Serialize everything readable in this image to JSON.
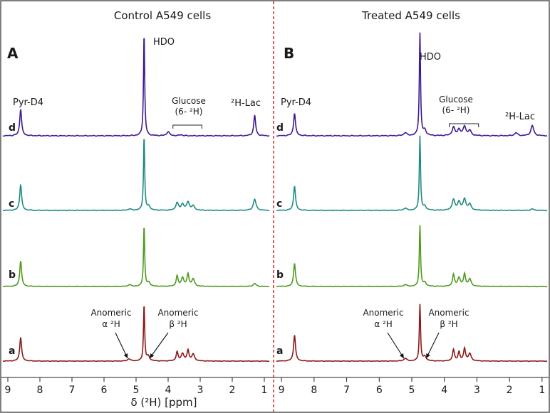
{
  "figure": {
    "xlabel": "δ (²H) [ppm]",
    "ticks": [
      "9",
      "8",
      "7",
      "6",
      "5",
      "4",
      "3",
      "2",
      "1"
    ],
    "colors": {
      "a": "#8b1a1a",
      "b": "#4e9a1f",
      "c": "#1f8a85",
      "d": "#3d1a8f",
      "divider": "#e0302a",
      "frame": "#555555"
    }
  },
  "chart_data": [
    {
      "type": "line",
      "panel_letter": "A",
      "title": "Control A549 cells",
      "xlabel": "δ (²H) [ppm]",
      "x_reversed": true,
      "xlim": [
        9.2,
        0.8
      ],
      "x_ticks": [
        9,
        8,
        7,
        6,
        5,
        4,
        3,
        2,
        1
      ],
      "series": [
        {
          "name": "a",
          "peaks": [
            {
              "ppm": 8.6,
              "h": 0.42
            },
            {
              "ppm": 5.22,
              "h": 0.04
            },
            {
              "ppm": 4.75,
              "h": 1.0
            },
            {
              "ppm": 4.62,
              "h": 0.08
            },
            {
              "ppm": 3.72,
              "h": 0.16
            },
            {
              "ppm": 3.55,
              "h": 0.13
            },
            {
              "ppm": 3.38,
              "h": 0.19
            },
            {
              "ppm": 3.22,
              "h": 0.12
            }
          ]
        },
        {
          "name": "b",
          "peaks": [
            {
              "ppm": 8.6,
              "h": 0.42
            },
            {
              "ppm": 5.2,
              "h": 0.03
            },
            {
              "ppm": 4.75,
              "h": 1.0
            },
            {
              "ppm": 4.6,
              "h": 0.06
            },
            {
              "ppm": 3.72,
              "h": 0.17
            },
            {
              "ppm": 3.55,
              "h": 0.14
            },
            {
              "ppm": 3.38,
              "h": 0.2
            },
            {
              "ppm": 3.22,
              "h": 0.12
            },
            {
              "ppm": 1.3,
              "h": 0.05
            }
          ]
        },
        {
          "name": "c",
          "peaks": [
            {
              "ppm": 8.6,
              "h": 0.35
            },
            {
              "ppm": 5.2,
              "h": 0.02
            },
            {
              "ppm": 4.75,
              "h": 1.0
            },
            {
              "ppm": 4.6,
              "h": 0.05
            },
            {
              "ppm": 3.72,
              "h": 0.1
            },
            {
              "ppm": 3.55,
              "h": 0.08
            },
            {
              "ppm": 3.38,
              "h": 0.11
            },
            {
              "ppm": 3.22,
              "h": 0.06
            },
            {
              "ppm": 1.3,
              "h": 0.15
            }
          ]
        },
        {
          "name": "d",
          "peaks": [
            {
              "ppm": 8.6,
              "h": 0.26
            },
            {
              "ppm": 4.75,
              "h": 1.0
            },
            {
              "ppm": 4.0,
              "h": 0.04
            },
            {
              "ppm": 3.6,
              "h": 0.01
            },
            {
              "ppm": 1.3,
              "h": 0.2
            }
          ]
        }
      ],
      "annotations": [
        {
          "text": "Pyr-D4",
          "ppm": 8.6,
          "series": "d"
        },
        {
          "text": "HDO",
          "ppm": 4.75,
          "series": "d"
        },
        {
          "text": "Glucose",
          "text2": "(6- ²H)",
          "ppm_range": [
            3.85,
            2.95
          ],
          "series": "d"
        },
        {
          "text": "²H-Lac",
          "ppm": 1.3,
          "series": "d"
        },
        {
          "text": "Anomeric",
          "text2": "α ²H",
          "target_ppm": 5.22,
          "series": "a"
        },
        {
          "text": "Anomeric",
          "text2": "β ²H",
          "target_ppm": 4.62,
          "series": "a"
        }
      ]
    },
    {
      "type": "line",
      "panel_letter": "B",
      "title": "Treated A549 cells",
      "xlabel": "δ (²H) [ppm]",
      "x_reversed": true,
      "xlim": [
        9.2,
        0.8
      ],
      "x_ticks": [
        9,
        8,
        7,
        6,
        5,
        4,
        3,
        2,
        1
      ],
      "series": [
        {
          "name": "a",
          "peaks": [
            {
              "ppm": 8.6,
              "h": 0.46
            },
            {
              "ppm": 5.2,
              "h": 0.05
            },
            {
              "ppm": 4.75,
              "h": 1.0
            },
            {
              "ppm": 4.6,
              "h": 0.08
            },
            {
              "ppm": 3.72,
              "h": 0.2
            },
            {
              "ppm": 3.55,
              "h": 0.16
            },
            {
              "ppm": 3.38,
              "h": 0.22
            },
            {
              "ppm": 3.22,
              "h": 0.13
            }
          ]
        },
        {
          "name": "b",
          "peaks": [
            {
              "ppm": 8.6,
              "h": 0.38
            },
            {
              "ppm": 5.2,
              "h": 0.03
            },
            {
              "ppm": 4.75,
              "h": 1.0
            },
            {
              "ppm": 4.6,
              "h": 0.06
            },
            {
              "ppm": 3.72,
              "h": 0.19
            },
            {
              "ppm": 3.55,
              "h": 0.14
            },
            {
              "ppm": 3.38,
              "h": 0.2
            },
            {
              "ppm": 3.22,
              "h": 0.12
            }
          ]
        },
        {
          "name": "c",
          "peaks": [
            {
              "ppm": 8.6,
              "h": 0.33
            },
            {
              "ppm": 5.2,
              "h": 0.03
            },
            {
              "ppm": 4.75,
              "h": 1.0
            },
            {
              "ppm": 4.6,
              "h": 0.05
            },
            {
              "ppm": 3.72,
              "h": 0.14
            },
            {
              "ppm": 3.55,
              "h": 0.11
            },
            {
              "ppm": 3.38,
              "h": 0.15
            },
            {
              "ppm": 3.22,
              "h": 0.08
            },
            {
              "ppm": 1.3,
              "h": 0.02
            }
          ]
        },
        {
          "name": "d",
          "peaks": [
            {
              "ppm": 8.6,
              "h": 0.22
            },
            {
              "ppm": 5.2,
              "h": 0.03
            },
            {
              "ppm": 4.75,
              "h": 1.0
            },
            {
              "ppm": 4.6,
              "h": 0.05
            },
            {
              "ppm": 3.72,
              "h": 0.08
            },
            {
              "ppm": 3.55,
              "h": 0.06
            },
            {
              "ppm": 3.38,
              "h": 0.09
            },
            {
              "ppm": 3.22,
              "h": 0.05
            },
            {
              "ppm": 1.8,
              "h": 0.03
            },
            {
              "ppm": 1.3,
              "h": 0.1
            }
          ]
        }
      ],
      "annotations": [
        {
          "text": "Pyr-D4",
          "ppm": 8.6,
          "series": "d"
        },
        {
          "text": "HDO",
          "ppm": 4.75,
          "series": "d"
        },
        {
          "text": "Glucose",
          "text2": "(6- ²H)",
          "ppm_range": [
            3.85,
            2.95
          ],
          "series": "d"
        },
        {
          "text": "²H-Lac",
          "ppm": 1.3,
          "series": "d"
        },
        {
          "text": "Anomeric",
          "text2": "α ²H",
          "target_ppm": 5.2,
          "series": "a"
        },
        {
          "text": "Anomeric",
          "text2": "β ²H",
          "target_ppm": 4.6,
          "series": "a"
        }
      ]
    }
  ]
}
